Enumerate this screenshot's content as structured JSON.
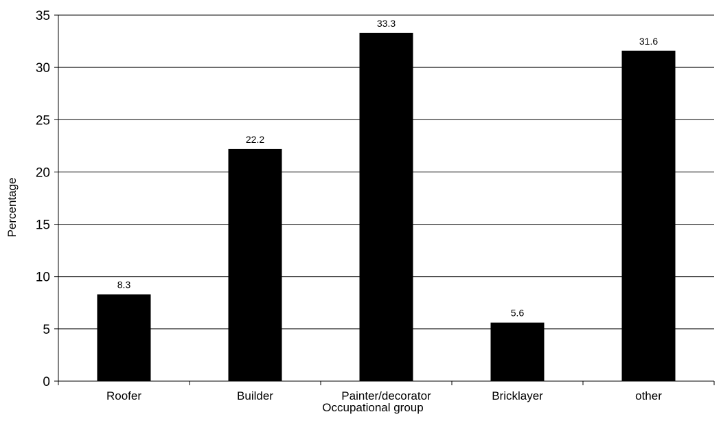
{
  "chart_data": {
    "type": "bar",
    "title": "",
    "xlabel": "Occupational group",
    "ylabel": "Percentage",
    "categories": [
      "Roofer",
      "Builder",
      "Painter/decorator",
      "Bricklayer",
      "other"
    ],
    "values": [
      8.3,
      22.2,
      33.3,
      5.6,
      31.6
    ],
    "data_labels": [
      "8.3",
      "22.2",
      "33.3",
      "5.6",
      "31.6"
    ],
    "ylim": [
      0,
      35
    ],
    "yticks": [
      0,
      5,
      10,
      15,
      20,
      25,
      30,
      35
    ],
    "ytick_labels": [
      "0",
      "5",
      "10",
      "15",
      "20",
      "25",
      "30",
      "35"
    ],
    "grid": "horizontal",
    "legend": "none",
    "bar_color": "#000000",
    "grid_color": "#000000"
  }
}
